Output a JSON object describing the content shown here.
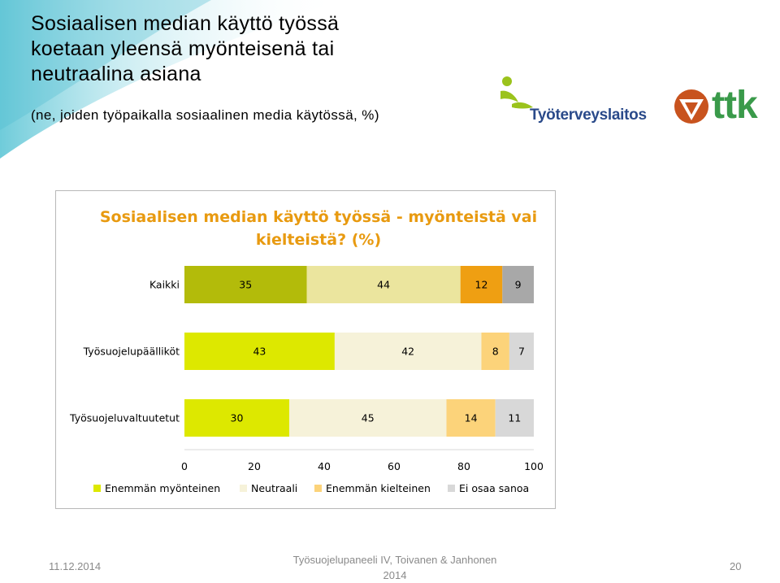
{
  "slide": {
    "title_lines": [
      "Sosiaalisen median käyttö työssä",
      "koetaan yleensä myönteisenä tai",
      "neutraalina asiana"
    ],
    "subtitle": "(ne, joiden työpaikalla sosiaalinen media käytössä, %)"
  },
  "logos": {
    "tyoterveyslaitos": "Työterveyslaitos",
    "ttk": "ttk"
  },
  "chart_data": {
    "type": "bar",
    "orientation": "horizontal",
    "stacked": true,
    "title_lines": [
      "Sosiaalisen median käyttö työssä - myönteistä vai",
      "kielteistä? (%)"
    ],
    "categories": [
      "Kaikki",
      "Työsuojelupäälliköt",
      "Työsuojeluvaltuutetut"
    ],
    "series": [
      {
        "name": "Enemmän myönteinen",
        "values": [
          35,
          43,
          30
        ],
        "colors": [
          "#b3bb0a",
          "#dde800",
          "#dde800"
        ]
      },
      {
        "name": "Neutraali",
        "values": [
          44,
          42,
          45
        ],
        "colors": [
          "#ebe59e",
          "#f6f2d9",
          "#f6f2d9"
        ]
      },
      {
        "name": "Enemmän kielteinen",
        "values": [
          12,
          8,
          14
        ],
        "colors": [
          "#ef9f12",
          "#fcd37a",
          "#fcd37a"
        ]
      },
      {
        "name": "Ei osaa sanoa",
        "values": [
          9,
          7,
          11
        ],
        "colors": [
          "#a8a8a8",
          "#d8d8d8",
          "#d8d8d8"
        ]
      }
    ],
    "legend_colors": [
      "#dde800",
      "#f6f2d9",
      "#fcd37a",
      "#d8d8d8"
    ],
    "xlim": [
      0,
      100
    ],
    "xticks": [
      0,
      20,
      40,
      60,
      80,
      100
    ],
    "title_color": "#e89a10",
    "legend_position": "bottom",
    "grid": false
  },
  "footer": {
    "date": "11.12.2014",
    "center_line1": "Työsuojelupaneeli IV, Toivanen & Janhonen",
    "center_line2": "2014",
    "page": "20"
  }
}
